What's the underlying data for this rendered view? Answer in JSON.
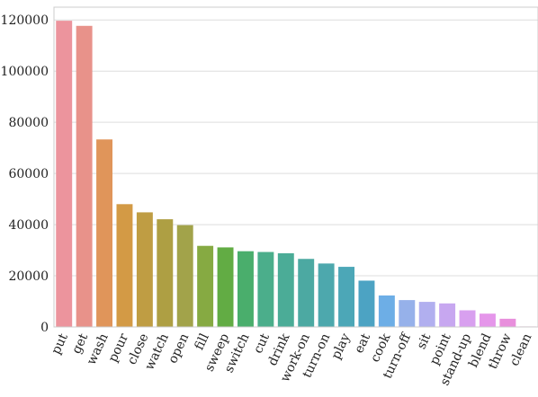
{
  "chart_data": {
    "type": "bar",
    "categories": [
      "put",
      "get",
      "wash",
      "pour",
      "close",
      "watch",
      "open",
      "fill",
      "sweep",
      "switch",
      "cut",
      "drink",
      "work-on",
      "turn-on",
      "play",
      "eat",
      "cook",
      "turn-off",
      "sit",
      "point",
      "stand-up",
      "blend",
      "throw",
      "clean"
    ],
    "values": [
      119700,
      117700,
      73300,
      48000,
      44800,
      42100,
      39800,
      31700,
      31100,
      29600,
      29300,
      28800,
      26600,
      24800,
      23500,
      18100,
      12300,
      10500,
      9800,
      9200,
      6500,
      5200,
      3200,
      200
    ],
    "ylim": [
      0,
      125000
    ],
    "yticks": [
      0,
      20000,
      40000,
      60000,
      80000,
      100000,
      120000
    ],
    "ytick_labels": [
      "0",
      "20000",
      "40000",
      "60000",
      "80000",
      "100000",
      "120000"
    ],
    "grid": "horizontal",
    "colors": [
      "#ec949d",
      "#e8928a",
      "#e0955a",
      "#d39a45",
      "#bf9d43",
      "#ae9f43",
      "#a2a34a",
      "#86aa42",
      "#62ac44",
      "#4aae6c",
      "#4bae8b",
      "#4bac97",
      "#4ca9a2",
      "#4da8ad",
      "#4ca7b7",
      "#4ca3c3",
      "#6daee6",
      "#96b1ea",
      "#b1afef",
      "#c7a7f0",
      "#d8a0ef",
      "#e596ea",
      "#e88fdc",
      "#eb94c6"
    ],
    "title": "",
    "xlabel": "",
    "ylabel": ""
  }
}
